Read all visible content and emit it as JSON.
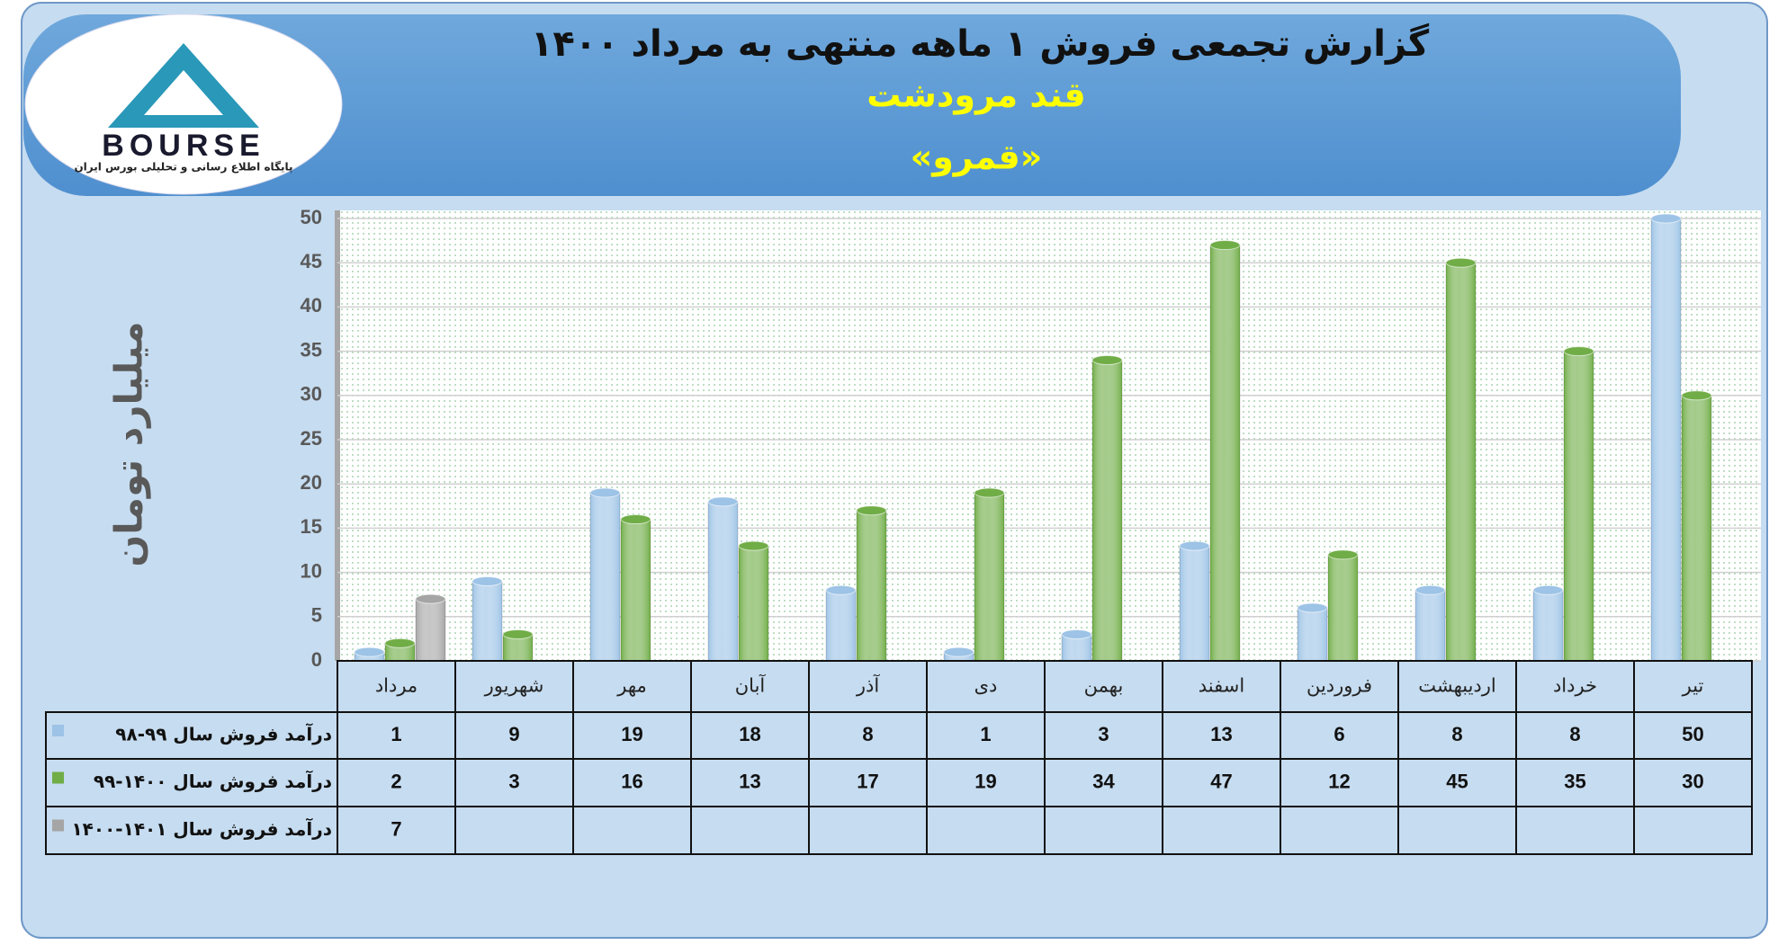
{
  "logo": {
    "brand": "BOURSE",
    "tagline": "پایگاه اطلاع رسانی و تحلیلی بورس ایران"
  },
  "chart_data": {
    "type": "bar",
    "title": "گزارش تجمعی فروش ۱ ماهه منتهی به مرداد ۱۴۰۰",
    "subtitle": "قند مرودشت",
    "subtitle2": "«قمرو»",
    "y_label": "میلیارد تومان",
    "categories": [
      "مرداد",
      "شهریور",
      "مهر",
      "آبان",
      "آذر",
      "دی",
      "بهمن",
      "اسفند",
      "فروردین",
      "اردیبهشت",
      "خرداد",
      "تیر"
    ],
    "series": [
      {
        "name": "درآمد فروش سال ۹۹-۹۸",
        "color": "#9dc3e6",
        "values": [
          1,
          9,
          19,
          18,
          8,
          1,
          3,
          13,
          6,
          8,
          8,
          50
        ]
      },
      {
        "name": "درآمد فروش سال ۱۴۰۰-۹۹",
        "color": "#70ad47",
        "values": [
          2,
          3,
          16,
          13,
          17,
          19,
          34,
          47,
          12,
          45,
          35,
          30
        ]
      },
      {
        "name": "درآمد فروش سال ۱۴۰۱-۱۴۰۰",
        "color": "#a5a5a5",
        "values": [
          7,
          null,
          null,
          null,
          null,
          null,
          null,
          null,
          null,
          null,
          null,
          null
        ]
      }
    ],
    "ylim": [
      0,
      50
    ],
    "yticks": [
      0,
      5,
      10,
      15,
      20,
      25,
      30,
      35,
      40,
      45,
      50
    ],
    "grid": true
  }
}
